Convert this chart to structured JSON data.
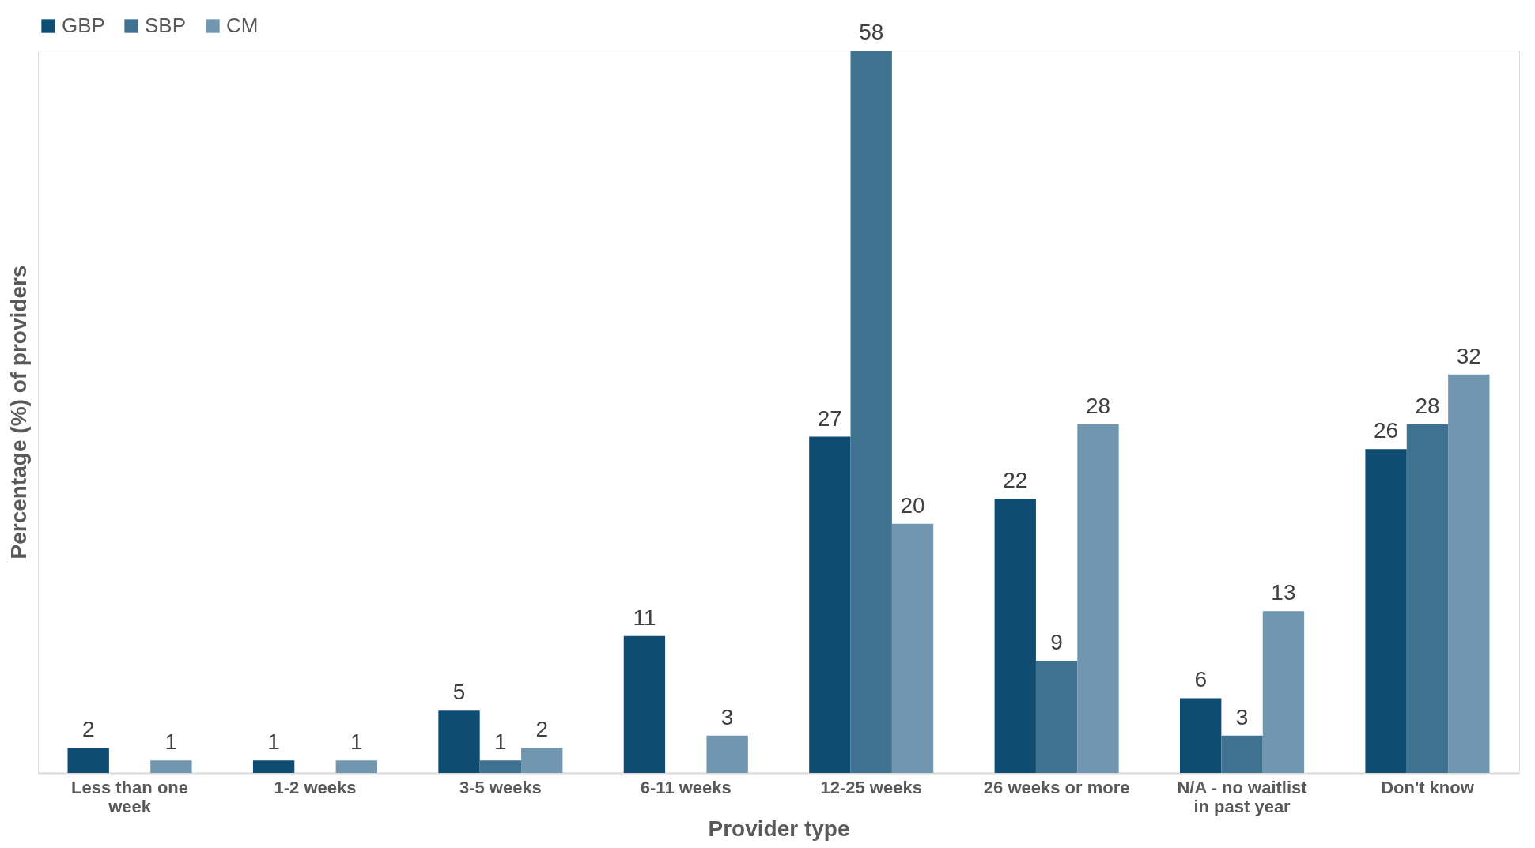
{
  "chart_data": {
    "type": "bar",
    "xlabel": "Provider type",
    "ylabel": "Percentage (%) of providers",
    "categories": [
      "Less than one week",
      "1-2 weeks",
      "3-5 weeks",
      "6-11 weeks",
      "12-25 weeks",
      "26 weeks or more",
      "N/A - no waitlist in past year",
      "Don't know"
    ],
    "series": [
      {
        "name": "GBP",
        "color": "#0f4c72",
        "values": [
          2,
          1,
          5,
          11,
          27,
          22,
          6,
          26
        ]
      },
      {
        "name": "SBP",
        "color": "#3f7191",
        "values": [
          null,
          null,
          1,
          null,
          58,
          9,
          3,
          28
        ]
      },
      {
        "name": "CM",
        "color": "#7096b0",
        "values": [
          1,
          1,
          2,
          3,
          20,
          28,
          13,
          32
        ]
      }
    ],
    "data_labels": true,
    "legend": "top",
    "grid": false
  }
}
